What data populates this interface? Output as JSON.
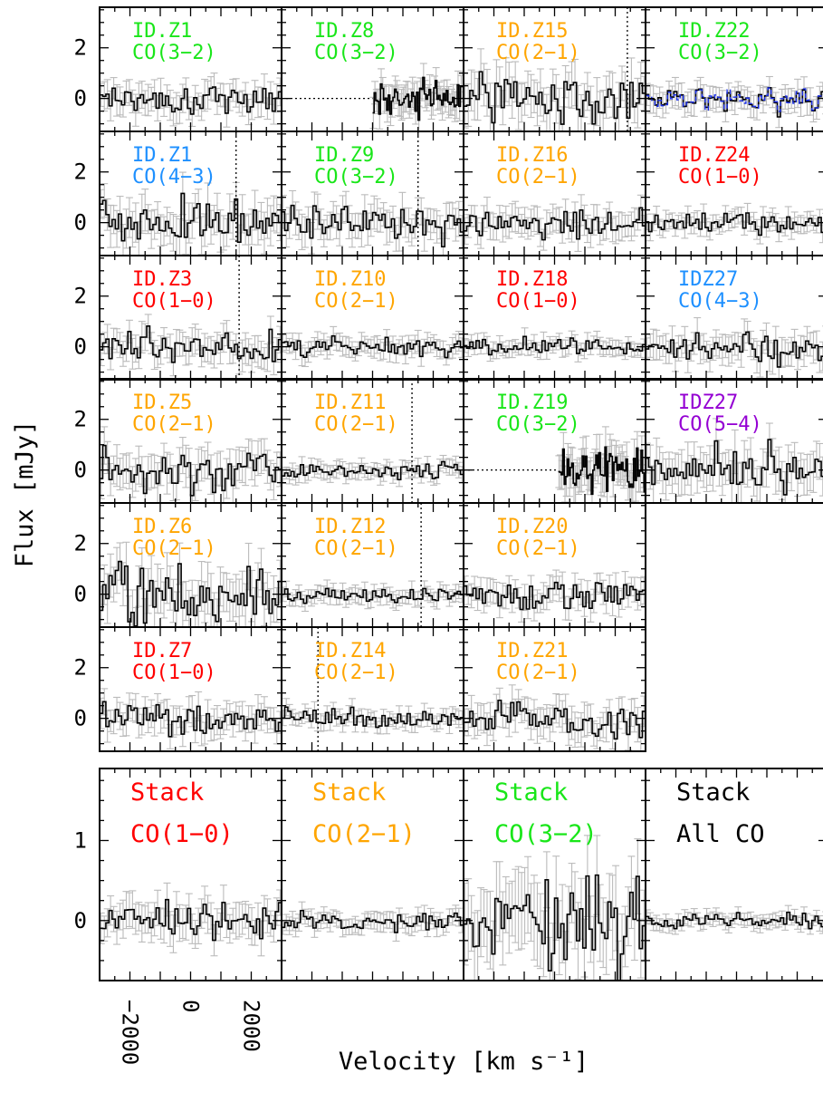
{
  "chart_data": {
    "type": "line",
    "description_style": "step spectra with grey error bars, grid of small panels",
    "ylabel": "Flux [mJy]",
    "xlabel": "Velocity [km s⁻¹]",
    "xlim": [
      -3000,
      3000
    ],
    "x_ticks": [
      "−2000",
      "0",
      "2000"
    ],
    "individual_panels": {
      "ylim": [
        -1.3,
        3.6
      ],
      "y_ticks": [
        "0",
        "2"
      ],
      "panels": [
        {
          "id": "ID.Z1",
          "line": "CO(3−2)",
          "color": "#19e619",
          "row": 0,
          "col": 0,
          "noise": 0.45
        },
        {
          "id": "ID.Z8",
          "line": "CO(3−2)",
          "color": "#19e619",
          "row": 0,
          "col": 1,
          "noise": 0.45,
          "data_from": 0.5
        },
        {
          "id": "ID.Z15",
          "line": "CO(2−1)",
          "color": "#ffa500",
          "row": 0,
          "col": 2,
          "noise": 0.7,
          "vline": 2400
        },
        {
          "id": "ID.Z22",
          "line": "CO(3−2)",
          "color": "#19e619",
          "row": 0,
          "col": 3,
          "noise": 0.4,
          "second_series": true
        },
        {
          "id": "ID.Z1",
          "line": "CO(4−3)",
          "color": "#1e90ff",
          "row": 1,
          "col": 0,
          "noise": 0.6,
          "vline": 1500
        },
        {
          "id": "ID.Z9",
          "line": "CO(3−2)",
          "color": "#19e619",
          "row": 1,
          "col": 1,
          "noise": 0.5,
          "vline": 1500
        },
        {
          "id": "ID.Z16",
          "line": "CO(2−1)",
          "color": "#ffa500",
          "row": 1,
          "col": 2,
          "noise": 0.45
        },
        {
          "id": "ID.Z24",
          "line": "CO(1−0)",
          "color": "#ff0000",
          "row": 1,
          "col": 3,
          "noise": 0.3
        },
        {
          "id": "ID.Z3",
          "line": "CO(1−0)",
          "color": "#ff0000",
          "row": 2,
          "col": 0,
          "noise": 0.45,
          "vline": 1600
        },
        {
          "id": "ID.Z10",
          "line": "CO(2−1)",
          "color": "#ffa500",
          "row": 2,
          "col": 1,
          "noise": 0.3
        },
        {
          "id": "ID.Z18",
          "line": "CO(1−0)",
          "color": "#ff0000",
          "row": 2,
          "col": 2,
          "noise": 0.25
        },
        {
          "id": "IDZ27",
          "line": "CO(4−3)",
          "color": "#1e90ff",
          "row": 2,
          "col": 3,
          "noise": 0.45
        },
        {
          "id": "ID.Z5",
          "line": "CO(2−1)",
          "color": "#ffa500",
          "row": 3,
          "col": 0,
          "noise": 0.6
        },
        {
          "id": "ID.Z11",
          "line": "CO(2−1)",
          "color": "#ffa500",
          "row": 3,
          "col": 1,
          "noise": 0.25,
          "vline": 1300
        },
        {
          "id": "ID.Z19",
          "line": "CO(3−2)",
          "color": "#19e619",
          "row": 3,
          "col": 2,
          "noise": 0.6,
          "data_from": 0.52
        },
        {
          "id": "IDZ27",
          "line": "CO(5−4)",
          "color": "#9400d3",
          "row": 3,
          "col": 3,
          "noise": 0.65
        },
        {
          "id": "ID.Z6",
          "line": "CO(2−1)",
          "color": "#ffa500",
          "row": 4,
          "col": 0,
          "noise": 0.75
        },
        {
          "id": "ID.Z12",
          "line": "CO(2−1)",
          "color": "#ffa500",
          "row": 4,
          "col": 1,
          "noise": 0.25,
          "vline": 1600
        },
        {
          "id": "ID.Z20",
          "line": "CO(2−1)",
          "color": "#ffa500",
          "row": 4,
          "col": 2,
          "noise": 0.4
        },
        {
          "id": "ID.Z7",
          "line": "CO(1−0)",
          "color": "#ff0000",
          "row": 5,
          "col": 0,
          "noise": 0.45
        },
        {
          "id": "ID.Z14",
          "line": "CO(2−1)",
          "color": "#ffa500",
          "row": 5,
          "col": 1,
          "noise": 0.25,
          "vline": -1800
        },
        {
          "id": "ID.Z21",
          "line": "CO(2−1)",
          "color": "#ffa500",
          "row": 5,
          "col": 2,
          "noise": 0.5
        }
      ]
    },
    "stack_panels": {
      "ylim": [
        -0.75,
        1.9
      ],
      "y_ticks": [
        "0",
        "1"
      ],
      "panels": [
        {
          "title": "Stack",
          "line": "CO(1−0)",
          "color": "#ff0000",
          "col": 0,
          "noise": 0.17
        },
        {
          "title": "Stack",
          "line": "CO(2−1)",
          "color": "#ffa500",
          "col": 1,
          "noise": 0.09
        },
        {
          "title": "Stack",
          "line": "CO(3−2)",
          "color": "#19e619",
          "col": 2,
          "noise": 0.38
        },
        {
          "title": "Stack",
          "line": "All CO",
          "color": "#000000",
          "col": 3,
          "noise": 0.07
        }
      ]
    }
  }
}
